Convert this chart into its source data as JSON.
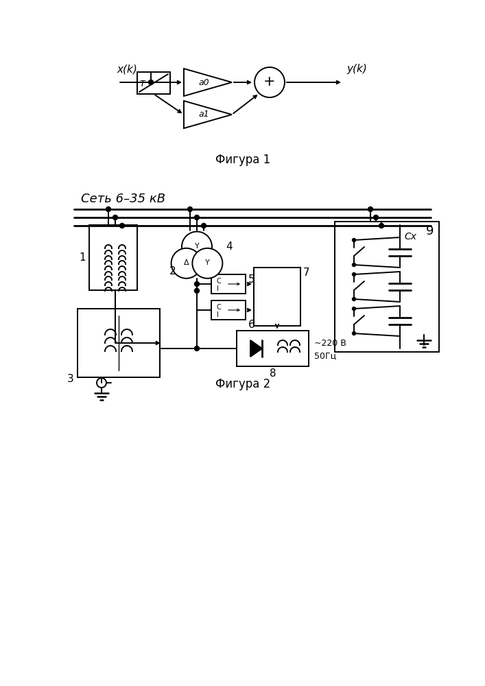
{
  "fig1_caption": "Фигура 1",
  "fig2_caption": "Фигура 2",
  "fig2_title": "Сеть 6–35 кВ",
  "bg_color": "#ffffff",
  "line_color": "#000000",
  "fig1_labels": {
    "x_input": "x(k)",
    "y_output": "y(k)",
    "delay": "T",
    "a0": "a0",
    "a1": "a1"
  },
  "fig2_labels": {
    "1": "1",
    "2": "2",
    "3": "3",
    "4": "4",
    "5": "5",
    "6": "6",
    "7": "7",
    "8": "8",
    "9": "9",
    "cx": "Cx",
    "v1": "~220 В",
    "v2": "50Гц"
  }
}
